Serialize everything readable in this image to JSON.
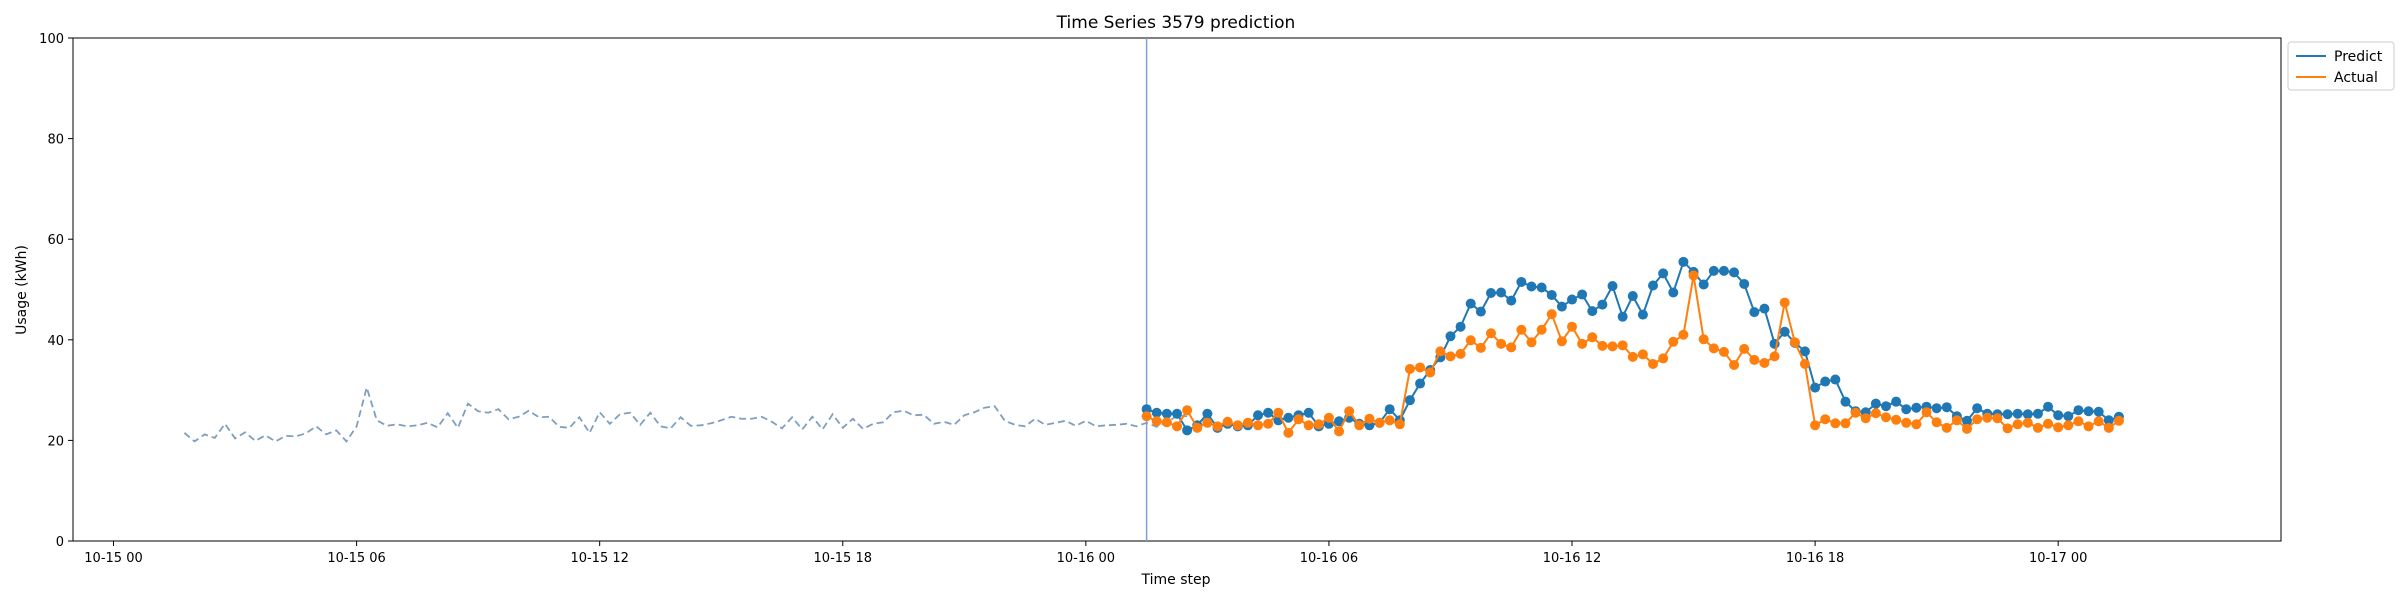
{
  "chart_data": {
    "type": "line",
    "title": "Time Series 3579 prediction",
    "xlabel": "Time step",
    "ylabel": "Usage (kWh)",
    "ylim": [
      0,
      100
    ],
    "yticks": [
      0,
      20,
      40,
      60,
      80,
      100
    ],
    "xtick_labels": [
      "10-15 00",
      "10-15 06",
      "10-15 12",
      "10-15 18",
      "10-16 00",
      "10-16 06",
      "10-16 12",
      "10-16 18",
      "10-17 00"
    ],
    "xtick_hours": [
      0,
      6,
      12,
      18,
      24,
      30,
      36,
      42,
      48
    ],
    "xlim_hours": [
      -1,
      53.5
    ],
    "split_hour": 25.5,
    "grid": false,
    "legend_position": "top-right (outside)",
    "history": {
      "x_hours_start": 1.75,
      "x_step_hours": 0.25,
      "color": "#7f9fbf",
      "values": [
        21.5,
        19.8,
        21.2,
        20.5,
        23.3,
        20.4,
        21.6,
        19.9,
        21.0,
        19.8,
        20.9,
        20.8,
        21.4,
        22.8,
        21.2,
        22.0,
        19.8,
        22.8,
        30.5,
        24.0,
        22.9,
        23.2,
        22.8,
        23.0,
        23.5,
        22.6,
        25.4,
        22.5,
        27.3,
        25.8,
        25.5,
        26.2,
        24.2,
        24.7,
        25.9,
        24.6,
        24.7,
        22.7,
        22.5,
        24.6,
        21.5,
        25.6,
        23.3,
        25.2,
        25.5,
        23.1,
        25.5,
        22.8,
        22.4,
        24.6,
        22.9,
        23.0,
        23.4,
        24.0,
        24.7,
        24.3,
        24.3,
        24.7,
        23.7,
        22.4,
        24.6,
        22.2,
        24.7,
        22.2,
        25.2,
        22.5,
        24.3,
        22.3,
        23.3,
        23.6,
        25.6,
        25.9,
        25.0,
        25.1,
        23.3,
        23.7,
        23.1,
        25.0,
        25.6,
        26.5,
        26.8,
        23.9,
        23.1,
        22.8,
        24.3,
        23.1,
        23.5,
        23.9,
        22.9,
        23.9,
        22.8,
        23.0,
        23.1,
        23.3,
        22.8,
        23.5,
        22.7,
        23.6,
        24.9,
        24.8
      ]
    },
    "series": [
      {
        "name": "Predict",
        "color": "#1f77b4",
        "x_hours_start": 25.5,
        "x_step_hours": 0.25,
        "values": [
          26.2,
          25.5,
          25.3,
          25.3,
          22.0,
          23.0,
          25.3,
          22.5,
          23.3,
          22.8,
          23.0,
          25.0,
          25.5,
          24.0,
          24.5,
          25.0,
          25.5,
          22.8,
          23.3,
          23.8,
          24.5,
          23.3,
          23.0,
          23.5,
          26.2,
          24.0,
          28.0,
          31.3,
          34.0,
          36.5,
          40.7,
          42.6,
          47.2,
          45.6,
          49.3,
          49.4,
          47.8,
          51.5,
          50.6,
          50.4,
          48.9,
          46.6,
          48.0,
          49.0,
          45.7,
          47.0,
          50.7,
          44.6,
          48.7,
          45.0,
          50.8,
          53.2,
          49.4,
          55.5,
          53.5,
          51.0,
          53.7,
          53.7,
          53.4,
          51.1,
          45.5,
          46.2,
          39.2,
          41.6,
          39.4,
          37.7,
          30.5,
          31.7,
          32.1,
          27.7,
          25.8,
          25.6,
          27.3,
          26.8,
          27.7,
          26.2,
          26.5,
          26.7,
          26.4,
          26.6,
          24.8,
          23.9,
          26.4,
          25.3,
          25.2,
          25.2,
          25.3,
          25.2,
          25.3,
          26.7,
          25.0,
          24.8,
          26.0,
          25.8,
          25.7,
          24.0,
          24.7
        ]
      },
      {
        "name": "Actual",
        "color": "#ff7f0e",
        "x_hours_start": 25.5,
        "x_step_hours": 0.25,
        "values": [
          24.8,
          23.8,
          23.6,
          22.8,
          26.0,
          22.5,
          23.5,
          22.8,
          23.7,
          23.0,
          23.5,
          23.0,
          23.3,
          25.5,
          21.5,
          24.2,
          23.0,
          23.2,
          24.5,
          21.8,
          25.8,
          23.0,
          24.3,
          23.5,
          24.0,
          23.2,
          34.2,
          34.5,
          33.5,
          37.7,
          36.7,
          37.2,
          39.9,
          38.4,
          41.3,
          39.2,
          38.5,
          42.0,
          39.5,
          42.0,
          45.1,
          39.7,
          42.6,
          39.2,
          40.5,
          38.8,
          38.7,
          38.9,
          36.6,
          37.1,
          35.2,
          36.3,
          39.6,
          41.0,
          52.8,
          40.1,
          38.3,
          37.6,
          35.0,
          38.2,
          36.0,
          35.4,
          36.7,
          47.4,
          39.5,
          35.2,
          23.0,
          24.2,
          23.4,
          23.4,
          25.5,
          24.4,
          25.4,
          24.6,
          24.1,
          23.5,
          23.2,
          25.6,
          23.6,
          22.5,
          24.0,
          22.3,
          24.2,
          24.5,
          24.4,
          22.4,
          23.2,
          23.5,
          22.5,
          23.3,
          22.6,
          23.0,
          23.8,
          22.8,
          23.8,
          22.5,
          23.9
        ]
      }
    ]
  }
}
